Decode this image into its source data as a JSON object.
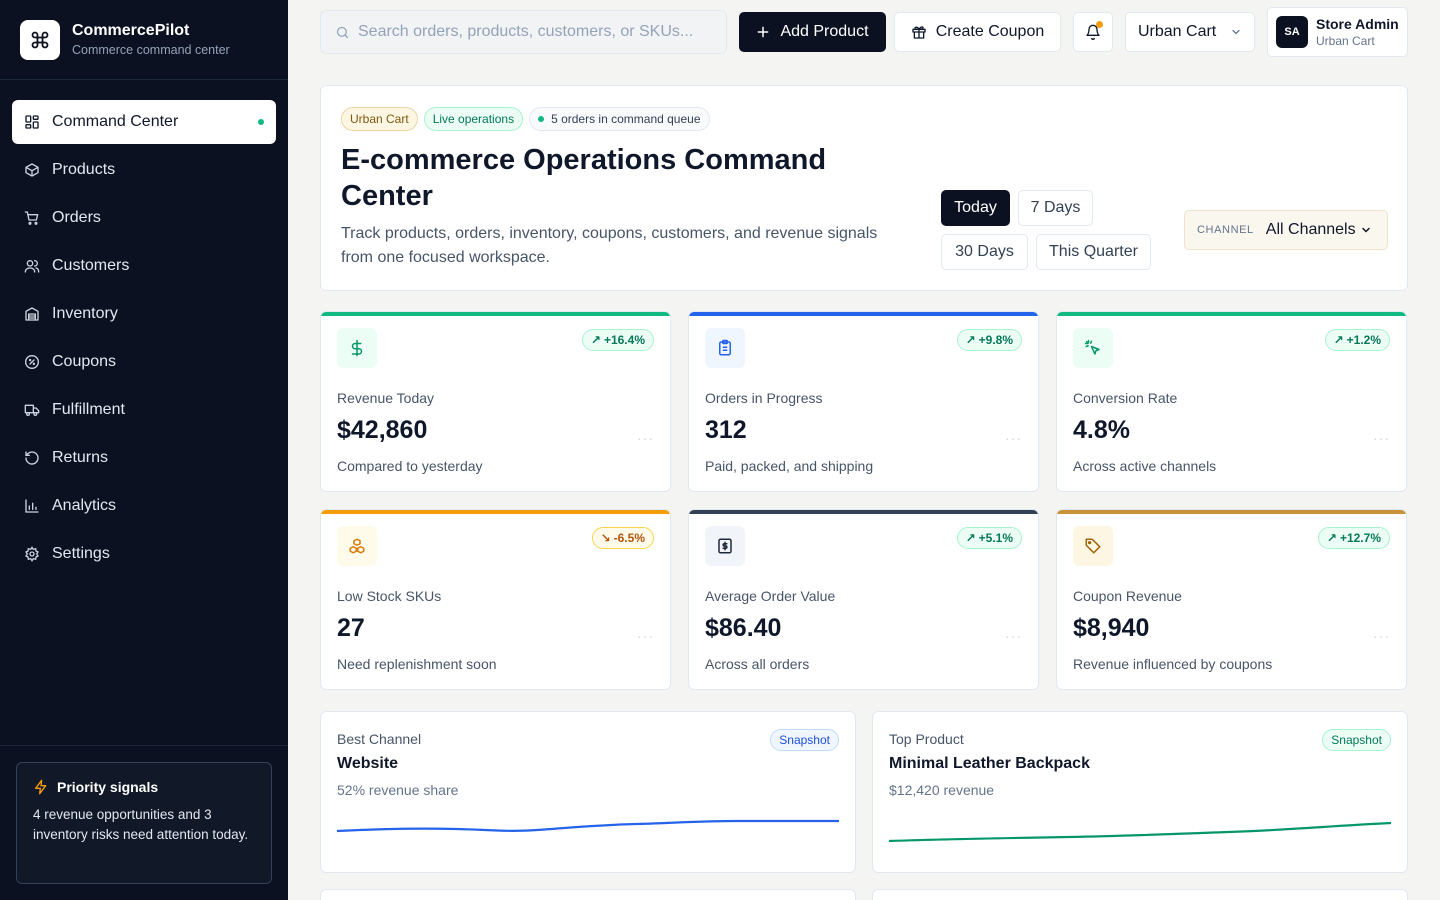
{
  "brand": {
    "name": "CommercePilot",
    "subtitle": "Commerce command center"
  },
  "sidebar": {
    "items": [
      {
        "label": "Command Center",
        "icon": "dashboard-icon",
        "active": true
      },
      {
        "label": "Products",
        "icon": "box-icon"
      },
      {
        "label": "Orders",
        "icon": "cart-icon"
      },
      {
        "label": "Customers",
        "icon": "users-icon"
      },
      {
        "label": "Inventory",
        "icon": "warehouse-icon"
      },
      {
        "label": "Coupons",
        "icon": "percent-icon"
      },
      {
        "label": "Fulfillment",
        "icon": "truck-icon"
      },
      {
        "label": "Returns",
        "icon": "return-icon"
      },
      {
        "label": "Analytics",
        "icon": "bar-chart-icon"
      },
      {
        "label": "Settings",
        "icon": "gear-icon"
      }
    ],
    "priority": {
      "title": "Priority signals",
      "text": "4 revenue opportunities and 3 inventory risks need attention today."
    }
  },
  "topbar": {
    "search_placeholder": "Search orders, products, customers, or SKUs...",
    "add_product": "Add Product",
    "create_coupon": "Create Coupon",
    "store": "Urban Cart",
    "user": {
      "initials": "SA",
      "name": "Store Admin",
      "store": "Urban Cart"
    }
  },
  "hero": {
    "chips": {
      "store": "Urban Cart",
      "live": "Live operations",
      "queue": "5 orders in command queue"
    },
    "title": "E-commerce Operations Command Center",
    "description": "Track products, orders, inventory, coupons, customers, and revenue signals from one focused workspace.",
    "ranges": [
      "Today",
      "7 Days",
      "30 Days",
      "This Quarter"
    ],
    "active_range": "Today",
    "channel_label": "CHANNEL",
    "channel_value": "All Channels"
  },
  "kpis": [
    {
      "label": "Revenue Today",
      "value": "$42,860",
      "trend": "+16.4%",
      "direction": "up",
      "note": "Compared to yesterday",
      "color": "#10b981",
      "icon": "dollar-icon"
    },
    {
      "label": "Orders in Progress",
      "value": "312",
      "trend": "+9.8%",
      "direction": "up",
      "note": "Paid, packed, and shipping",
      "color": "#2563eb",
      "icon": "clipboard-icon"
    },
    {
      "label": "Conversion Rate",
      "value": "4.8%",
      "trend": "+1.2%",
      "direction": "up",
      "note": "Across active channels",
      "color": "#10b981",
      "icon": "cursor-click-icon"
    },
    {
      "label": "Low Stock SKUs",
      "value": "27",
      "trend": "-6.5%",
      "direction": "down",
      "note": "Need replenishment soon",
      "color": "#f59e0b",
      "icon": "boxes-icon"
    },
    {
      "label": "Average Order Value",
      "value": "$86.40",
      "trend": "+5.1%",
      "direction": "up",
      "note": "Across all orders",
      "color": "#334155",
      "icon": "receipt-dollar-icon"
    },
    {
      "label": "Coupon Revenue",
      "value": "$8,940",
      "trend": "+12.7%",
      "direction": "up",
      "note": "Revenue influenced by coupons",
      "color": "#c8923a",
      "icon": "tag-icon"
    }
  ],
  "snapshots": [
    {
      "label": "Best Channel",
      "title": "Website",
      "sub": "52% revenue share",
      "badge": "Snapshot",
      "color": "#2563eb"
    },
    {
      "label": "Top Product",
      "title": "Minimal Leather Backpack",
      "sub": "$12,420 revenue",
      "badge": "Snapshot",
      "color": "#059669"
    }
  ]
}
